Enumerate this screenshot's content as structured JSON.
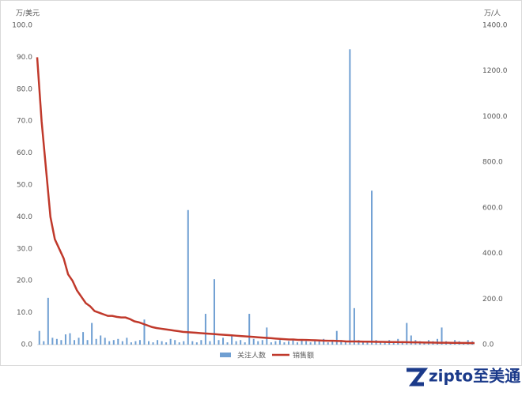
{
  "chart_data": {
    "type": "bar-line",
    "y_unit": "万/美元",
    "y2_unit": "万/人",
    "categories": [
      null,
      null,
      null,
      null,
      null,
      null,
      null,
      null,
      null,
      null,
      null,
      null,
      null,
      null,
      null,
      null,
      null,
      null,
      null,
      null,
      null,
      null,
      null,
      null,
      null,
      null,
      null,
      null,
      null,
      null,
      null,
      null,
      null,
      null,
      null,
      null,
      null,
      null,
      null,
      null,
      null,
      null,
      null,
      null,
      null,
      null,
      null,
      null,
      null,
      null,
      null,
      null,
      null,
      null,
      null,
      null,
      null,
      null,
      null,
      null,
      null,
      null,
      null,
      null,
      null,
      null,
      null,
      null,
      null,
      null,
      null,
      null,
      null,
      null,
      null,
      null,
      null,
      null,
      null,
      null,
      null,
      null,
      null,
      null,
      null,
      null,
      null,
      null,
      null,
      null,
      null,
      null,
      null,
      null,
      null,
      null,
      null,
      null,
      null,
      null
    ],
    "series": [
      {
        "name": "关注人数",
        "type": "bar",
        "axis": "y2",
        "color": "#6f9fd2",
        "values": [
          60,
          15,
          205,
          30,
          25,
          20,
          45,
          50,
          20,
          30,
          55,
          20,
          95,
          25,
          40,
          30,
          15,
          20,
          25,
          15,
          30,
          10,
          15,
          20,
          110,
          15,
          10,
          20,
          15,
          10,
          25,
          20,
          10,
          15,
          590,
          15,
          10,
          20,
          135,
          15,
          287,
          20,
          30,
          10,
          45,
          15,
          20,
          10,
          135,
          25,
          15,
          20,
          75,
          10,
          15,
          20,
          10,
          15,
          25,
          10,
          20,
          15,
          10,
          15,
          20,
          25,
          10,
          15,
          60,
          20,
          15,
          1295,
          160,
          20,
          15,
          10,
          675,
          20,
          10,
          15,
          20,
          10,
          25,
          15,
          95,
          40,
          20,
          15,
          10,
          20,
          15,
          25,
          75,
          15,
          10,
          20,
          15,
          10,
          20,
          15
        ]
      },
      {
        "name": "销售额",
        "type": "line",
        "color": "#c0392b",
        "values": [
          90,
          70,
          55,
          40,
          33,
          30,
          27,
          22,
          20,
          17,
          15,
          13,
          12,
          10.5,
          10,
          9.5,
          9,
          9,
          8.7,
          8.5,
          8.5,
          8,
          7.3,
          7,
          6.5,
          6,
          5.5,
          5.2,
          5,
          4.8,
          4.6,
          4.4,
          4.2,
          4,
          3.9,
          3.8,
          3.7,
          3.6,
          3.5,
          3.4,
          3.3,
          3.2,
          3.1,
          3,
          2.9,
          2.8,
          2.7,
          2.6,
          2.5,
          2.4,
          2.3,
          2.2,
          2.1,
          2,
          1.9,
          1.8,
          1.7,
          1.6,
          1.6,
          1.5,
          1.5,
          1.45,
          1.4,
          1.35,
          1.3,
          1.25,
          1.2,
          1.2,
          1.15,
          1.1,
          1,
          1,
          0.98,
          0.96,
          0.94,
          0.92,
          0.9,
          0.88,
          0.86,
          0.84,
          0.82,
          0.8,
          0.78,
          0.76,
          0.74,
          0.72,
          0.7,
          0.68,
          0.66,
          0.64,
          0.62,
          0.6,
          0.6,
          0.58,
          0.56,
          0.55,
          0.54,
          0.52,
          0.51,
          0.5
        ]
      }
    ],
    "ylim": [
      0,
      100
    ],
    "yticks": [
      {
        "value": 0,
        "label": "0.0"
      },
      {
        "value": 10,
        "label": "10.0"
      },
      {
        "value": 20,
        "label": "20.0"
      },
      {
        "value": 30,
        "label": "30.0"
      },
      {
        "value": 40,
        "label": "40.0"
      },
      {
        "value": 50,
        "label": "50.0"
      },
      {
        "value": 60,
        "label": "60.0"
      },
      {
        "value": 70,
        "label": "70.0"
      },
      {
        "value": 80,
        "label": "80.0"
      },
      {
        "value": 90,
        "label": "90.0"
      },
      {
        "value": 100,
        "label": "100.0"
      }
    ],
    "y2lim": [
      0,
      1400
    ],
    "y2ticks": [
      {
        "value": 0,
        "label": "0.0"
      },
      {
        "value": 200,
        "label": "200.0"
      },
      {
        "value": 400,
        "label": "400.0"
      },
      {
        "value": 600,
        "label": "600.0"
      },
      {
        "value": 800,
        "label": "800.0"
      },
      {
        "value": 1000,
        "label": "1000.0"
      },
      {
        "value": 1200,
        "label": "1200.0"
      },
      {
        "value": 1400,
        "label": "1400.0"
      }
    ],
    "legend": "bottom",
    "watermark": "zipto至美通"
  }
}
